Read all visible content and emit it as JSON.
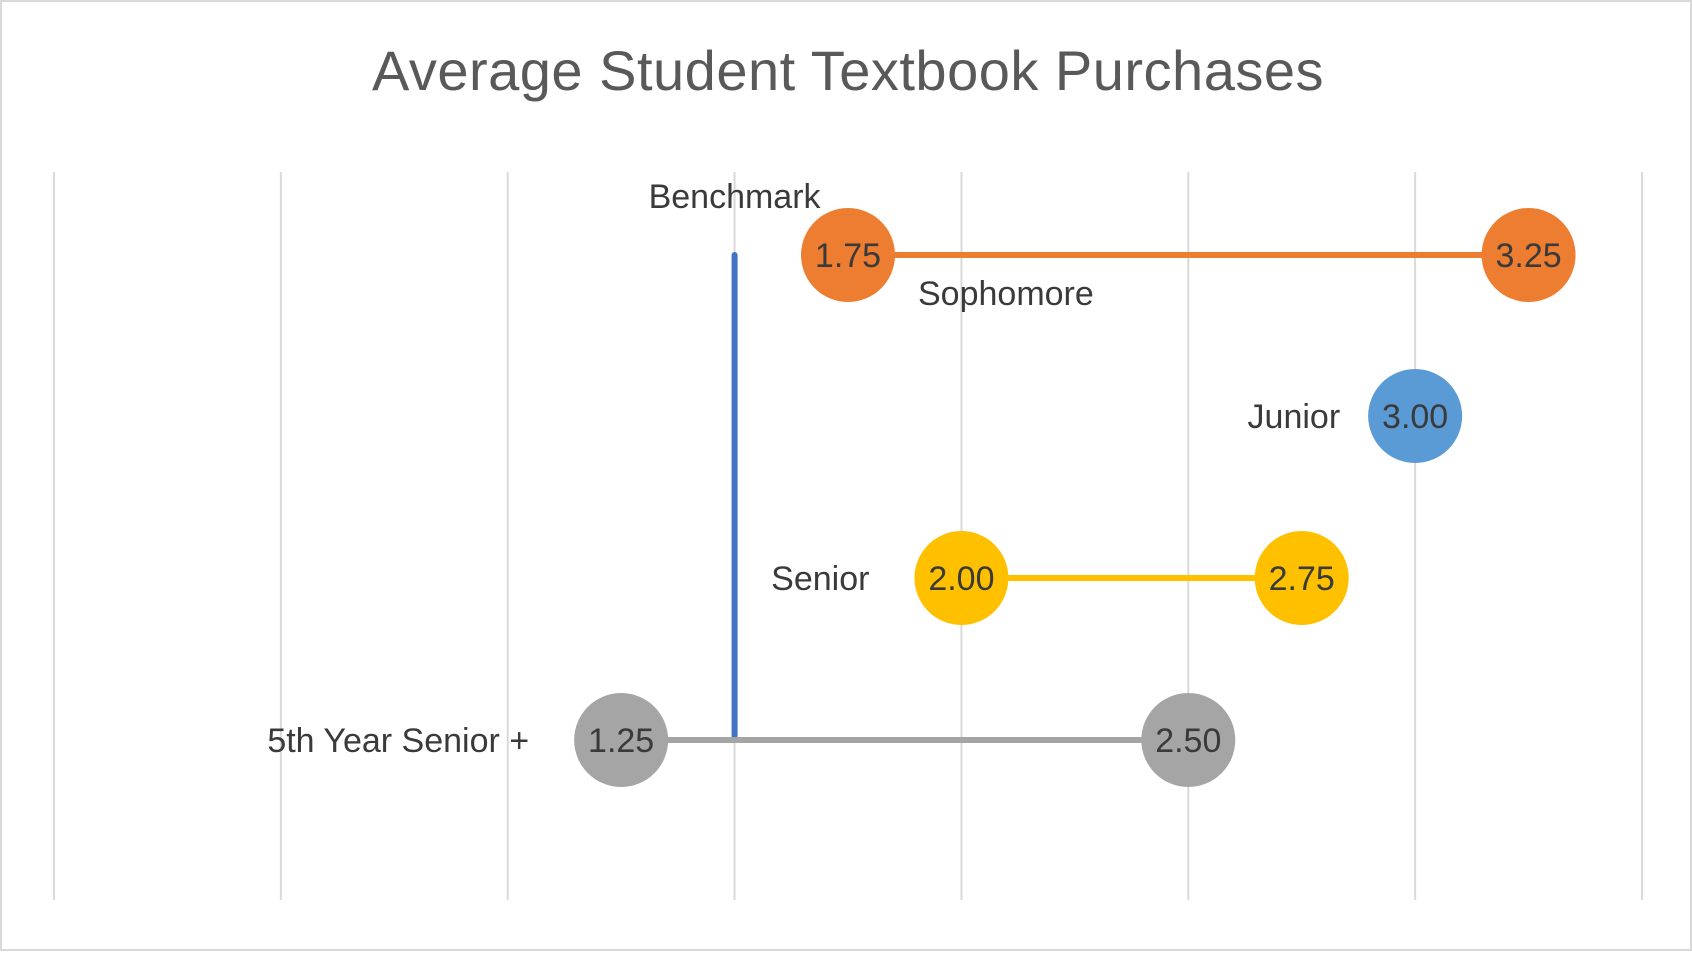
{
  "chart_data": {
    "type": "dumbbell",
    "title": "Average Student Textbook Purchases",
    "xlim": [
      0,
      3.5
    ],
    "x_grid_step": 0.5,
    "grid": true,
    "benchmark": {
      "label": "Benchmark",
      "value": 1.5,
      "color": "#4472c4"
    },
    "series": [
      {
        "name": "Sophomore",
        "low": 1.75,
        "high": 3.25,
        "low_label": "1.75",
        "high_label": "3.25",
        "color": "#ed7d31"
      },
      {
        "name": "Junior",
        "low": 3.0,
        "high": 3.0,
        "low_label": "3.00",
        "high_label": "3.00",
        "color": "#5b9bd5"
      },
      {
        "name": "Senior",
        "low": 2.0,
        "high": 2.75,
        "low_label": "2.00",
        "high_label": "2.75",
        "color": "#ffc000"
      },
      {
        "name": "5th Year Senior +",
        "low": 1.25,
        "high": 2.5,
        "low_label": "1.25",
        "high_label": "2.50",
        "color": "#a5a5a5"
      }
    ]
  }
}
